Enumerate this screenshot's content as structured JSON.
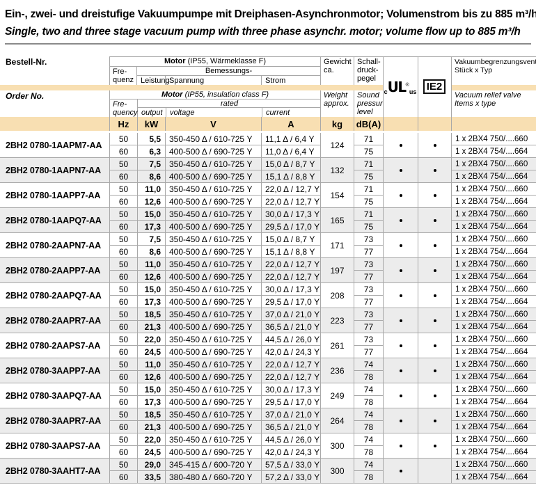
{
  "title": {
    "de": "Ein-, zwei- und dreistufige Vakuumpumpe mit Dreiphasen-Asynchronmotor; Volumenstrom bis zu 885 m³/h",
    "en": "Single, two and three stage vacuum pump with three phase asynchr. motor; volume flow up to 885 m³/h"
  },
  "colors": {
    "accent_band": "#F8DFB2",
    "row_alt": "#ECECEC",
    "border": "#A8A8A8"
  },
  "header": {
    "de": {
      "order_no": "Bestell-Nr.",
      "motor": "Motor",
      "motor_note": "(IP55, Wärmeklasse F)",
      "freq1": "Fre-",
      "freq2": "quenz",
      "rated": "Bemessungs-",
      "power": "Leistung",
      "voltage": "Spannung",
      "current": "Strom",
      "weight1": "Gewicht",
      "weight2": "ca.",
      "sound1": "Schall-",
      "sound2": "druck-",
      "sound3": "pegel",
      "valve1": "Vakuumbegrenzungsventil",
      "valve2": "Stück x Typ"
    },
    "en": {
      "order_no": "Order No.",
      "motor": "Motor",
      "motor_note": "(IP55, insulation class F)",
      "freq1": "Fre-",
      "freq2": "quency",
      "rated": "rated",
      "power": "output",
      "voltage": "voltage",
      "current": "current",
      "weight1": "Weight",
      "weight2": "approx.",
      "sound1": "Sound",
      "sound2": "pressure",
      "sound3": "level",
      "valve1": "Vacuum relief valve",
      "valve2": "Items x type"
    },
    "certs": {
      "ul_c": "c",
      "ul_mark": "UL",
      "ul_reg": "®",
      "ul_us": "us",
      "ie2": "IE2"
    }
  },
  "units": {
    "freq": "Hz",
    "power": "kW",
    "voltage": "V",
    "current": "A",
    "weight": "kg",
    "sound": "dB(A)"
  },
  "table": {
    "groups": [
      {
        "model": "2BH2 0780-1AAPM7-AA",
        "weight": "124",
        "ul_dot": true,
        "ie2_dot": true,
        "rows": [
          {
            "freq": "50",
            "power": "5,5",
            "voltage": "350-450 Δ / 610-725 Y",
            "current": "11,1 Δ / 6,4 Y",
            "sound": "71",
            "valve": "1 x 2BX4 750/....660"
          },
          {
            "freq": "60",
            "power": "6,3",
            "voltage": "400-500 Δ / 690-725 Y",
            "current": "11,0 Δ / 6,4 Y",
            "sound": "75",
            "valve": "1 x 2BX4 754/....664"
          }
        ]
      },
      {
        "model": "2BH2 0780-1AAPN7-AA",
        "weight": "132",
        "ul_dot": true,
        "ie2_dot": true,
        "rows": [
          {
            "freq": "50",
            "power": "7,5",
            "voltage": "350-450 Δ / 610-725 Y",
            "current": "15,0 Δ / 8,7 Y",
            "sound": "71",
            "valve": "1 x 2BX4 750/....660"
          },
          {
            "freq": "60",
            "power": "8,6",
            "voltage": "400-500 Δ / 690-725 Y",
            "current": "15,1 Δ / 8,8 Y",
            "sound": "75",
            "valve": "1 x 2BX4 754/....664"
          }
        ]
      },
      {
        "model": "2BH2 0780-1AAPP7-AA",
        "weight": "154",
        "ul_dot": true,
        "ie2_dot": true,
        "rows": [
          {
            "freq": "50",
            "power": "11,0",
            "voltage": "350-450 Δ / 610-725 Y",
            "current": "22,0 Δ / 12,7 Y",
            "sound": "71",
            "valve": "1 x 2BX4 750/....660"
          },
          {
            "freq": "60",
            "power": "12,6",
            "voltage": "400-500 Δ / 690-725 Y",
            "current": "22,0 Δ / 12,7 Y",
            "sound": "75",
            "valve": "1 x 2BX4 754/....664"
          }
        ]
      },
      {
        "model": "2BH2 0780-1AAPQ7-AA",
        "weight": "165",
        "ul_dot": true,
        "ie2_dot": true,
        "rows": [
          {
            "freq": "50",
            "power": "15,0",
            "voltage": "350-450 Δ / 610-725 Y",
            "current": "30,0 Δ / 17,3 Y",
            "sound": "71",
            "valve": "1 x 2BX4 750/....660"
          },
          {
            "freq": "60",
            "power": "17,3",
            "voltage": "400-500 Δ / 690-725 Y",
            "current": "29,5 Δ / 17,0 Y",
            "sound": "75",
            "valve": "1 x 2BX4 754/....664"
          }
        ]
      },
      {
        "model": "2BH2 0780-2AAPN7-AA",
        "weight": "171",
        "ul_dot": true,
        "ie2_dot": true,
        "rows": [
          {
            "freq": "50",
            "power": "7,5",
            "voltage": "350-450 Δ / 610-725 Y",
            "current": "15,0 Δ / 8,7 Y",
            "sound": "73",
            "valve": "1 x 2BX4 750/....660"
          },
          {
            "freq": "60",
            "power": "8,6",
            "voltage": "400-500 Δ / 690-725 Y",
            "current": "15,1 Δ / 8,8 Y",
            "sound": "77",
            "valve": "1 x 2BX4 754/....664"
          }
        ]
      },
      {
        "model": "2BH2 0780-2AAPP7-AA",
        "weight": "197",
        "ul_dot": true,
        "ie2_dot": true,
        "rows": [
          {
            "freq": "50",
            "power": "11,0",
            "voltage": "350-450 Δ / 610-725 Y",
            "current": "22,0 Δ / 12,7 Y",
            "sound": "73",
            "valve": "1 x 2BX4 750/....660"
          },
          {
            "freq": "60",
            "power": "12,6",
            "voltage": "400-500 Δ / 690-725 Y",
            "current": "22,0 Δ / 12,7 Y",
            "sound": "77",
            "valve": "1 x 2BX4 754/....664"
          }
        ]
      },
      {
        "model": "2BH2 0780-2AAPQ7-AA",
        "weight": "208",
        "ul_dot": true,
        "ie2_dot": true,
        "rows": [
          {
            "freq": "50",
            "power": "15,0",
            "voltage": "350-450 Δ / 610-725 Y",
            "current": "30,0 Δ / 17,3 Y",
            "sound": "73",
            "valve": "1 x 2BX4 750/....660"
          },
          {
            "freq": "60",
            "power": "17,3",
            "voltage": "400-500 Δ / 690-725 Y",
            "current": "29,5 Δ / 17,0 Y",
            "sound": "77",
            "valve": "1 x 2BX4 754/....664"
          }
        ]
      },
      {
        "model": "2BH2 0780-2AAPR7-AA",
        "weight": "223",
        "ul_dot": true,
        "ie2_dot": true,
        "rows": [
          {
            "freq": "50",
            "power": "18,5",
            "voltage": "350-450 Δ / 610-725 Y",
            "current": "37,0 Δ / 21,0 Y",
            "sound": "73",
            "valve": "1 x 2BX4 750/....660"
          },
          {
            "freq": "60",
            "power": "21,3",
            "voltage": "400-500 Δ / 690-725 Y",
            "current": "36,5 Δ / 21,0 Y",
            "sound": "77",
            "valve": "1 x 2BX4 754/....664"
          }
        ]
      },
      {
        "model": "2BH2 0780-2AAPS7-AA",
        "weight": "261",
        "ul_dot": true,
        "ie2_dot": true,
        "rows": [
          {
            "freq": "50",
            "power": "22,0",
            "voltage": "350-450 Δ / 610-725 Y",
            "current": "44,5 Δ / 26,0 Y",
            "sound": "73",
            "valve": "1 x 2BX4 750/....660"
          },
          {
            "freq": "60",
            "power": "24,5",
            "voltage": "400-500 Δ / 690-725 Y",
            "current": "42,0 Δ / 24,3 Y",
            "sound": "77",
            "valve": "1 x 2BX4 754/....664"
          }
        ]
      },
      {
        "model": "2BH2 0780-3AAPP7-AA",
        "weight": "236",
        "ul_dot": true,
        "ie2_dot": true,
        "rows": [
          {
            "freq": "50",
            "power": "11,0",
            "voltage": "350-450 Δ / 610-725 Y",
            "current": "22,0 Δ / 12,7 Y",
            "sound": "74",
            "valve": "1 x 2BX4 750/....660"
          },
          {
            "freq": "60",
            "power": "12,6",
            "voltage": "400-500 Δ / 690-725 Y",
            "current": "22,0 Δ / 12,7 Y",
            "sound": "78",
            "valve": "1 x 2BX4 754/....664"
          }
        ]
      },
      {
        "model": "2BH2 0780-3AAPQ7-AA",
        "weight": "249",
        "ul_dot": true,
        "ie2_dot": true,
        "rows": [
          {
            "freq": "50",
            "power": "15,0",
            "voltage": "350-450 Δ / 610-725 Y",
            "current": "30,0 Δ / 17,3 Y",
            "sound": "74",
            "valve": "1 x 2BX4 750/....660"
          },
          {
            "freq": "60",
            "power": "17,3",
            "voltage": "400-500 Δ / 690-725 Y",
            "current": "29,5 Δ / 17,0 Y",
            "sound": "78",
            "valve": "1 x 2BX4 754/....664"
          }
        ]
      },
      {
        "model": "2BH2 0780-3AAPR7-AA",
        "weight": "264",
        "ul_dot": true,
        "ie2_dot": true,
        "rows": [
          {
            "freq": "50",
            "power": "18,5",
            "voltage": "350-450 Δ / 610-725 Y",
            "current": "37,0 Δ / 21,0 Y",
            "sound": "74",
            "valve": "1 x 2BX4 750/....660"
          },
          {
            "freq": "60",
            "power": "21,3",
            "voltage": "400-500 Δ / 690-725 Y",
            "current": "36,5 Δ / 21,0 Y",
            "sound": "78",
            "valve": "1 x 2BX4 754/....664"
          }
        ]
      },
      {
        "model": "2BH2 0780-3AAPS7-AA",
        "weight": "300",
        "ul_dot": true,
        "ie2_dot": true,
        "rows": [
          {
            "freq": "50",
            "power": "22,0",
            "voltage": "350-450 Δ / 610-725 Y",
            "current": "44,5 Δ / 26,0 Y",
            "sound": "74",
            "valve": "1 x 2BX4 750/....660"
          },
          {
            "freq": "60",
            "power": "24,5",
            "voltage": "400-500 Δ / 690-725 Y",
            "current": "42,0 Δ / 24,3 Y",
            "sound": "78",
            "valve": "1 x 2BX4 754/....664"
          }
        ]
      },
      {
        "model": "2BH2 0780-3AAHT7-AA",
        "weight": "300",
        "ul_dot": true,
        "ie2_dot": false,
        "rows": [
          {
            "freq": "50",
            "power": "29,0",
            "voltage": "345-415 Δ / 600-720 Y",
            "current": "57,5 Δ / 33,0 Y",
            "sound": "74",
            "valve": "1 x 2BX4 750/....660"
          },
          {
            "freq": "60",
            "power": "33,5",
            "voltage": "380-480 Δ / 660-720 Y",
            "current": "57,2 Δ / 33,0 Y",
            "sound": "78",
            "valve": "1 x 2BX4 754/....664"
          }
        ]
      }
    ]
  }
}
